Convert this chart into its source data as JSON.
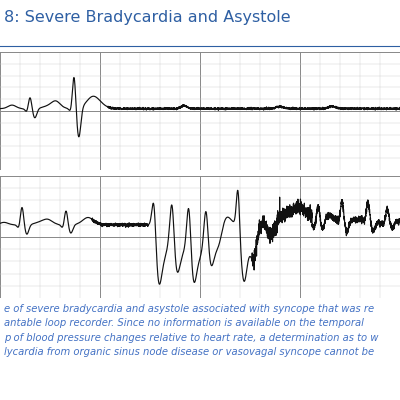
{
  "title": "8: Severe Bradycardia and Asystole",
  "title_color": "#2E5FA3",
  "title_fontsize": 11.5,
  "background_color": "#ffffff",
  "grid_major_color": "#888888",
  "grid_minor_color": "#cccccc",
  "ecg_color": "#111111",
  "caption_color": "#4472C4",
  "caption_text": "e of severe bradycardia and asystole associated with syncope that was re\nantable loop recorder. Since no information is available on the temporal\np of blood pressure changes relative to heart rate, a determination as to w\nlycardia from organic sinus node disease or vasovagal syncope cannot be",
  "caption_fontsize": 7.2,
  "title_underline_color": "#2E5FA3",
  "ecg_bg": "#e8e8e8"
}
